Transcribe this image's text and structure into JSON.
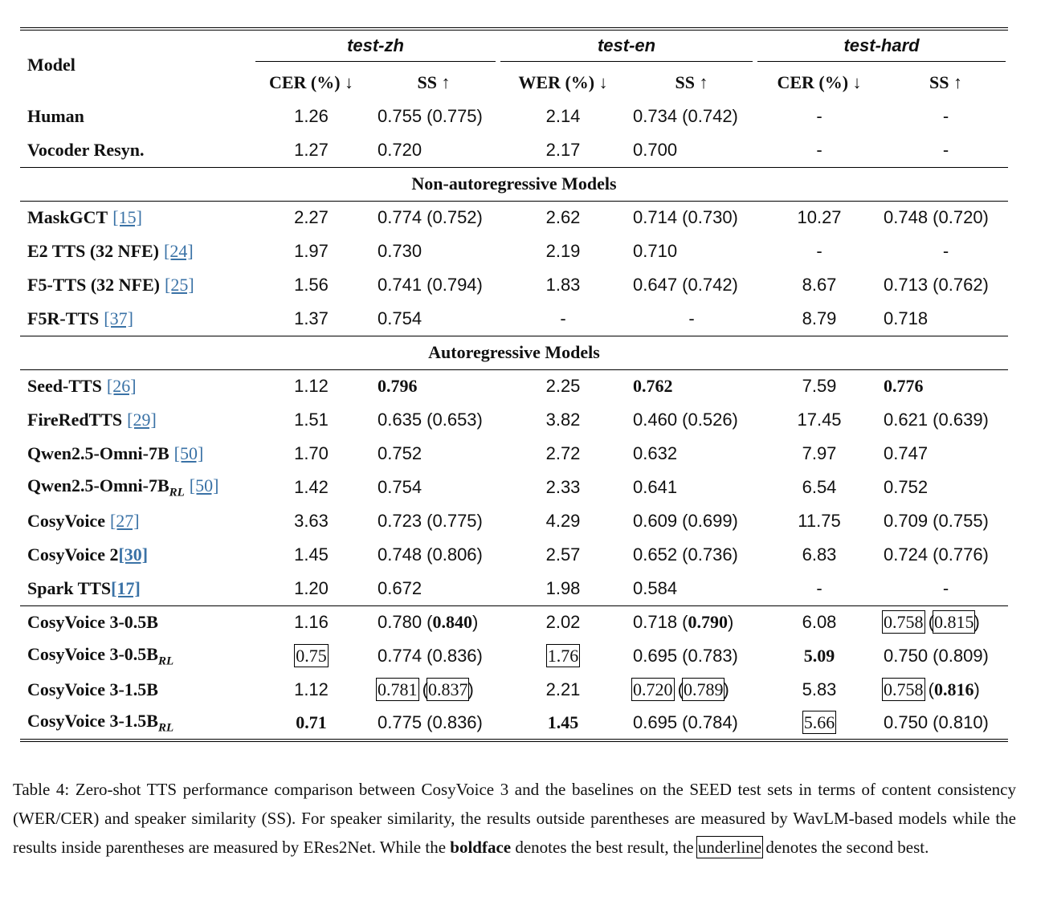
{
  "table": {
    "header": {
      "model": "Model",
      "groups": [
        "test-zh",
        "test-en",
        "test-hard"
      ],
      "columns": [
        "CER (%) ↓",
        "SS ↑",
        "WER (%) ↓",
        "SS ↑",
        "CER (%) ↓",
        "SS ↑"
      ]
    },
    "sections": [
      {
        "rows": [
          {
            "model": {
              "name": "Human"
            },
            "cells": [
              "1.26",
              "0.755 (0.775)",
              "2.14",
              "0.734 (0.742)",
              "-",
              "-"
            ]
          },
          {
            "model": {
              "name": "Vocoder Resyn."
            },
            "cells": [
              "1.27",
              "0.720",
              "2.17",
              "0.700",
              "-",
              "-"
            ]
          }
        ]
      },
      {
        "title": "Non-autoregressive Models",
        "rows": [
          {
            "model": {
              "name": "MaskGCT",
              "ref": "[15]"
            },
            "cells": [
              "2.27",
              "0.774 (0.752)",
              "2.62",
              "0.714 (0.730)",
              "10.27",
              "0.748 (0.720)"
            ]
          },
          {
            "model": {
              "name": "E2 TTS (32 NFE)",
              "ref": "[24]"
            },
            "cells": [
              "1.97",
              "0.730",
              "2.19",
              "0.710",
              "-",
              "-"
            ]
          },
          {
            "model": {
              "name": "F5-TTS (32 NFE)",
              "ref": "[25]"
            },
            "cells": [
              "1.56",
              "0.741 (0.794)",
              "1.83",
              "0.647 (0.742)",
              "8.67",
              "0.713 (0.762)"
            ]
          },
          {
            "model": {
              "name": "F5R-TTS",
              "ref": "[37]"
            },
            "cells": [
              "1.37",
              "0.754",
              "-",
              "-",
              "8.79",
              "0.718"
            ]
          }
        ]
      },
      {
        "title": "Autoregressive Models",
        "rows": [
          {
            "model": {
              "name": "Seed-TTS",
              "ref": "[26]"
            },
            "cells": [
              "1.12",
              [
                {
                  "text": "0.796",
                  "style": "bold"
                }
              ],
              "2.25",
              [
                {
                  "text": "0.762",
                  "style": "bold"
                }
              ],
              "7.59",
              [
                {
                  "text": "0.776",
                  "style": "bold"
                }
              ]
            ]
          },
          {
            "model": {
              "name": "FireRedTTS",
              "ref": "[29]"
            },
            "cells": [
              "1.51",
              "0.635 (0.653)",
              "3.82",
              "0.460 (0.526)",
              "17.45",
              "0.621 (0.639)"
            ]
          },
          {
            "model": {
              "name": "Qwen2.5-Omni-7B",
              "ref": "[50]"
            },
            "cells": [
              "1.70",
              "0.752",
              "2.72",
              "0.632",
              "7.97",
              "0.747"
            ]
          },
          {
            "model": {
              "name": "Qwen2.5-Omni-7B",
              "sub": "RL",
              "ref": "[50]"
            },
            "cells": [
              "1.42",
              "0.754",
              "2.33",
              "0.641",
              "6.54",
              "0.752"
            ]
          },
          {
            "model": {
              "name": "CosyVoice",
              "ref": "[27]"
            },
            "cells": [
              "3.63",
              "0.723 (0.775)",
              "4.29",
              "0.609 (0.699)",
              "11.75",
              "0.709 (0.755)"
            ]
          },
          {
            "model": {
              "name": "CosyVoice 2",
              "ref": "[30]",
              "ref_style": "bold"
            },
            "cells": [
              "1.45",
              "0.748 (0.806)",
              "2.57",
              "0.652 (0.736)",
              "6.83",
              "0.724 (0.776)"
            ]
          },
          {
            "model": {
              "name": "Spark TTS",
              "ref": "[17]",
              "ref_style": "bold"
            },
            "cells": [
              "1.20",
              "0.672",
              "1.98",
              "0.584",
              "-",
              "-"
            ]
          }
        ]
      },
      {
        "rows": [
          {
            "model": {
              "name": "CosyVoice 3-0.5B"
            },
            "cells": [
              "1.16",
              [
                {
                  "text": "0.780 ("
                },
                {
                  "text": "0.840",
                  "style": "bold"
                },
                {
                  "text": ")"
                }
              ],
              "2.02",
              [
                {
                  "text": "0.718 ("
                },
                {
                  "text": "0.790",
                  "style": "bold"
                },
                {
                  "text": ")"
                }
              ],
              "6.08",
              [
                {
                  "text": "0.758",
                  "style": "box"
                },
                {
                  "text": " ("
                },
                {
                  "text": "0.815",
                  "style": "box"
                },
                {
                  "text": ")"
                }
              ]
            ]
          },
          {
            "model": {
              "name": "CosyVoice 3-0.5B",
              "sub": "RL"
            },
            "cells": [
              [
                {
                  "text": "0.75",
                  "style": "box"
                }
              ],
              "0.774 (0.836)",
              [
                {
                  "text": "1.76",
                  "style": "box"
                }
              ],
              "0.695 (0.783)",
              [
                {
                  "text": "5.09",
                  "style": "bold"
                }
              ],
              "0.750 (0.809)"
            ]
          },
          {
            "model": {
              "name": "CosyVoice 3-1.5B"
            },
            "cells": [
              "1.12",
              [
                {
                  "text": "0.781",
                  "style": "box"
                },
                {
                  "text": " ("
                },
                {
                  "text": "0.837",
                  "style": "box"
                },
                {
                  "text": ")"
                }
              ],
              "2.21",
              [
                {
                  "text": "0.720",
                  "style": "box"
                },
                {
                  "text": " ("
                },
                {
                  "text": "0.789",
                  "style": "box"
                },
                {
                  "text": ")"
                }
              ],
              "5.83",
              [
                {
                  "text": "0.758",
                  "style": "box"
                },
                {
                  "text": " ("
                },
                {
                  "text": "0.816",
                  "style": "bold"
                },
                {
                  "text": ")"
                }
              ]
            ]
          },
          {
            "model": {
              "name": "CosyVoice 3-1.5B",
              "sub": "RL"
            },
            "cells": [
              [
                {
                  "text": "0.71",
                  "style": "bold"
                }
              ],
              "0.775 (0.836)",
              [
                {
                  "text": "1.45",
                  "style": "bold"
                }
              ],
              "0.695 (0.784)",
              [
                {
                  "text": "5.66",
                  "style": "box"
                }
              ],
              "0.750 (0.810)"
            ]
          }
        ]
      }
    ]
  },
  "caption": [
    {
      "text": "Table 4: Zero-shot TTS performance comparison between CosyVoice 3 and the baselines on the SEED test sets in terms of content consistency (WER/CER) and speaker similarity (SS). For speaker similarity, the results outside parentheses are measured by WavLM-based models while the results inside parentheses are measured by ERes2Net. While the "
    },
    {
      "text": "boldface",
      "style": "bold"
    },
    {
      "text": " denotes the best result, the "
    },
    {
      "text": "underline",
      "style": "box"
    },
    {
      "text": " denotes the second best."
    }
  ]
}
